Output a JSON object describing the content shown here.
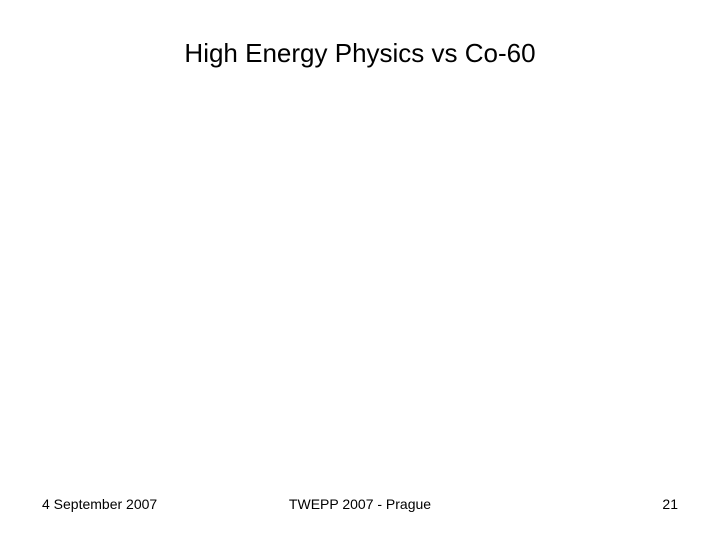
{
  "slide": {
    "title": "High Energy Physics vs Co-60",
    "footer": {
      "date": "4 September 2007",
      "event": "TWEPP 2007 - Prague",
      "page_number": "21"
    }
  }
}
